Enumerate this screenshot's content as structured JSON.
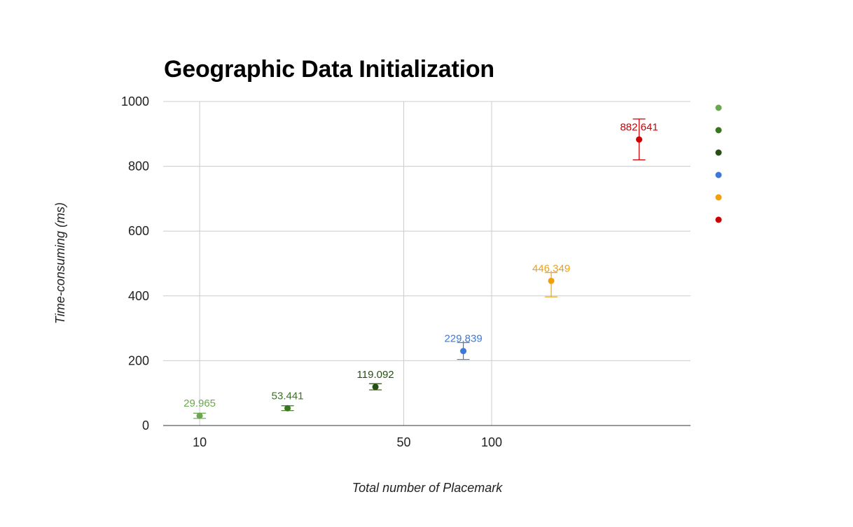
{
  "chart_data": {
    "type": "scatter",
    "title": "Geographic Data Initialization",
    "xlabel": "Total number of Placemark",
    "ylabel": "Time-consuming (ms)",
    "x_scale": "log",
    "x_ticks": [
      10,
      50,
      100
    ],
    "xlim": [
      7.5,
      480
    ],
    "ylim": [
      0,
      1000
    ],
    "y_ticks": [
      0,
      200,
      400,
      600,
      800,
      1000
    ],
    "grid": true,
    "legend": "right",
    "series": [
      {
        "x": 10,
        "y": 29.965,
        "label": "29.965",
        "err_low": 22,
        "err_high": 38,
        "color": "#6aa84f"
      },
      {
        "x": 20,
        "y": 53.441,
        "label": "53.441",
        "err_low": 46,
        "err_high": 61,
        "color": "#38761d"
      },
      {
        "x": 40,
        "y": 119.092,
        "label": "119.092",
        "err_low": 110,
        "err_high": 129,
        "color": "#274e13"
      },
      {
        "x": 80,
        "y": 229.839,
        "label": "229.839",
        "err_low": 204,
        "err_high": 256,
        "color": "#3c78d8"
      },
      {
        "x": 160,
        "y": 446.349,
        "label": "446.349",
        "err_low": 397,
        "err_high": 472,
        "color": "#f1a00c"
      },
      {
        "x": 320,
        "y": 882.641,
        "label": "882.641",
        "err_low": 820,
        "err_high": 946,
        "color": "#cc0000"
      }
    ]
  }
}
